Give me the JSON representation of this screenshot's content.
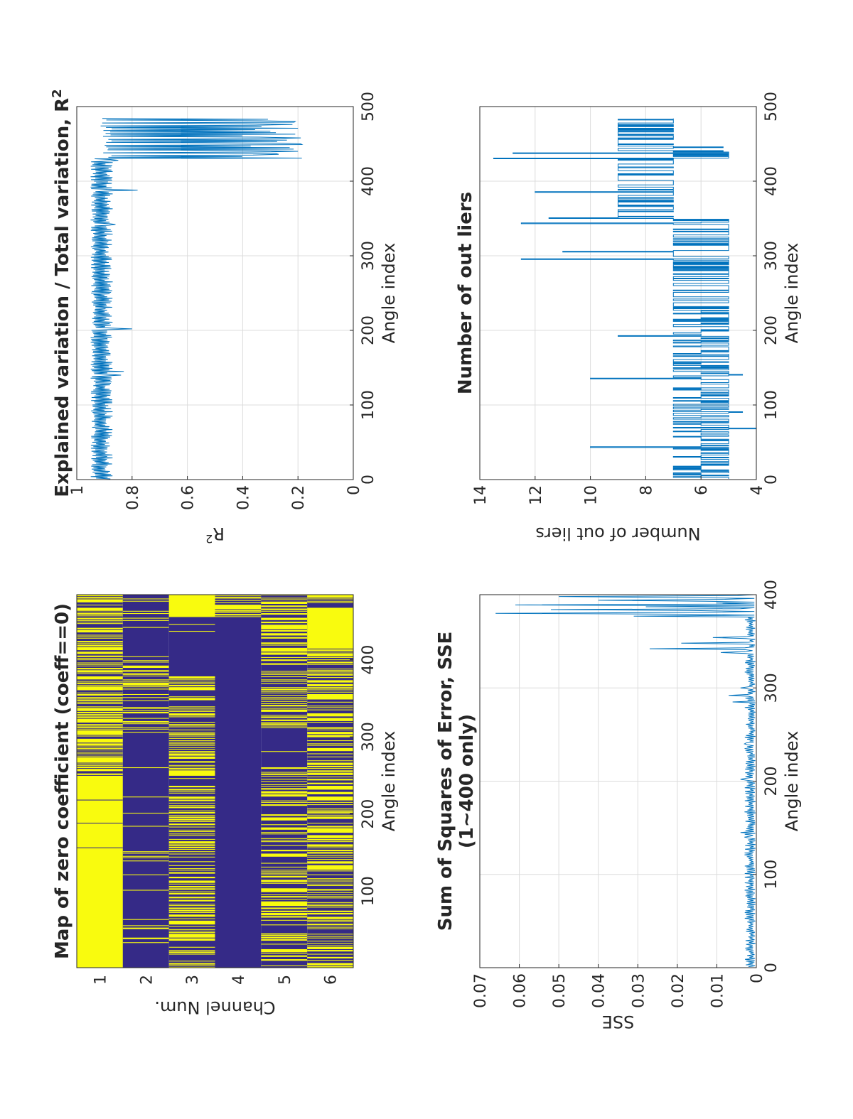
{
  "chart_data": [
    {
      "id": "zero_coeff_map",
      "type": "heatmap",
      "title": "Map of zero coefficient (coeff==0)",
      "xlabel": "Angle index",
      "ylabel": "Channel Num.",
      "xlim": [
        0.5,
        484.5
      ],
      "x_ticks": [
        100,
        200,
        300,
        400
      ],
      "y_categories": [
        "1",
        "2",
        "3",
        "4",
        "5",
        "6"
      ],
      "colors": {
        "zero": "#f9fb0e",
        "nonzero": "#352a87"
      },
      "channels": [
        {
          "channel": 1,
          "description": "mostly zero (yellow) with dense alternation after ~250"
        },
        {
          "channel": 2,
          "description": "mostly nonzero with sparse zero stripes; dense stripes 300-400"
        },
        {
          "channel": 3,
          "description": "alternating stripes from 1-380, nonzero 380-450, zero after 450"
        },
        {
          "channel": 4,
          "description": "nonzero throughout except zero block after ~455"
        },
        {
          "channel": 5,
          "description": "alternating stripes with a nonzero block ~270-310 and after 420 sparse"
        },
        {
          "channel": 6,
          "description": "dense alternating stripes, solid zero block ~415-465"
        }
      ]
    },
    {
      "id": "r2",
      "type": "line",
      "title": "Explained variation / Total variation, R",
      "title_sup": "2",
      "xlabel": "Angle index",
      "ylabel": "R",
      "ylabel_sup": "2",
      "xlim": [
        0,
        500
      ],
      "ylim": [
        0,
        1
      ],
      "x_ticks": [
        0,
        100,
        200,
        300,
        400,
        500
      ],
      "y_ticks": [
        "0",
        "0.2",
        "0.4",
        "0.6",
        "0.8",
        "1"
      ],
      "grid": true,
      "color": "#0072bd",
      "n_points": 484,
      "baseline_band": [
        0.87,
        0.95
      ],
      "spikes": [
        {
          "x": 140,
          "y": 0.84
        },
        {
          "x": 145,
          "y": 0.83
        },
        {
          "x": 202,
          "y": 0.8
        },
        {
          "x": 342,
          "y": 0.86
        },
        {
          "x": 388,
          "y": 0.78
        },
        {
          "x": 428,
          "y": 0.85
        },
        {
          "x": 436,
          "y": 0.27
        },
        {
          "x": 440,
          "y": 0.2
        },
        {
          "x": 445,
          "y": 0.23
        },
        {
          "x": 450,
          "y": 0.19
        },
        {
          "x": 455,
          "y": 0.24
        },
        {
          "x": 458,
          "y": 0.19
        },
        {
          "x": 463,
          "y": 0.21
        },
        {
          "x": 467,
          "y": 0.3
        },
        {
          "x": 471,
          "y": 0.2
        },
        {
          "x": 476,
          "y": 0.22
        },
        {
          "x": 480,
          "y": 0.21
        }
      ]
    },
    {
      "id": "sse",
      "type": "line",
      "title": "Sum of Squares of Error, SSE",
      "subtitle": "(1~400 only)",
      "xlabel": "Angle index",
      "ylabel": "SSE",
      "xlim": [
        0,
        400
      ],
      "ylim": [
        0,
        0.07
      ],
      "x_ticks": [
        0,
        100,
        200,
        300,
        400
      ],
      "y_ticks": [
        "0",
        "0.01",
        "0.02",
        "0.03",
        "0.04",
        "0.05",
        "0.06",
        "0.07"
      ],
      "grid": true,
      "color": "#0072bd",
      "n_points": 400,
      "spikes": [
        {
          "x": 140,
          "y": 0.003
        },
        {
          "x": 145,
          "y": 0.004
        },
        {
          "x": 202,
          "y": 0.004
        },
        {
          "x": 240,
          "y": 0.003
        },
        {
          "x": 285,
          "y": 0.006
        },
        {
          "x": 292,
          "y": 0.007
        },
        {
          "x": 300,
          "y": 0.004
        },
        {
          "x": 338,
          "y": 0.009
        },
        {
          "x": 342,
          "y": 0.027
        },
        {
          "x": 348,
          "y": 0.019
        },
        {
          "x": 354,
          "y": 0.011
        },
        {
          "x": 380,
          "y": 0.066
        },
        {
          "x": 384,
          "y": 0.052
        },
        {
          "x": 389,
          "y": 0.061
        },
        {
          "x": 394,
          "y": 0.04
        },
        {
          "x": 398,
          "y": 0.05
        }
      ]
    },
    {
      "id": "outliers",
      "type": "line",
      "title": "Number of out liers",
      "xlabel": "Angle index",
      "ylabel": "Number of out liers",
      "xlim": [
        0,
        500
      ],
      "ylim": [
        4,
        14
      ],
      "x_ticks": [
        0,
        100,
        200,
        300,
        400,
        500
      ],
      "y_ticks": [
        "4",
        "6",
        "8",
        "10",
        "12",
        "14"
      ],
      "grid": true,
      "color": "#0072bd",
      "n_points": 484,
      "typical_range": [
        5,
        7
      ],
      "spikes": [
        {
          "x": 43,
          "y": 10
        },
        {
          "x": 68,
          "y": 4
        },
        {
          "x": 90,
          "y": 4.5
        },
        {
          "x": 135,
          "y": 10
        },
        {
          "x": 140,
          "y": 4.5
        },
        {
          "x": 192,
          "y": 9
        },
        {
          "x": 295,
          "y": 12.5
        },
        {
          "x": 305,
          "y": 11
        },
        {
          "x": 343,
          "y": 12.5
        },
        {
          "x": 350,
          "y": 11.5
        },
        {
          "x": 385,
          "y": 12
        },
        {
          "x": 430,
          "y": 13.5
        },
        {
          "x": 437,
          "y": 12.8
        },
        {
          "x": 440,
          "y": 5.2
        },
        {
          "x": 445,
          "y": 5.2
        }
      ]
    }
  ]
}
